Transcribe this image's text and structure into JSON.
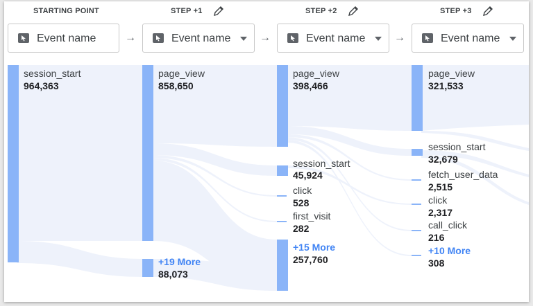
{
  "steps": [
    {
      "heading": "STARTING POINT",
      "selector": "Event name",
      "has_dropdown": false,
      "editable": false
    },
    {
      "heading": "STEP +1",
      "selector": "Event name",
      "has_dropdown": true,
      "editable": true
    },
    {
      "heading": "STEP +2",
      "selector": "Event name",
      "has_dropdown": true,
      "editable": true
    },
    {
      "heading": "STEP +3",
      "selector": "Event name",
      "has_dropdown": true,
      "editable": true
    }
  ],
  "arrow_glyph": "→",
  "nodes": {
    "c0": [
      {
        "label": "session_start",
        "value": "964,363"
      }
    ],
    "c1": [
      {
        "label": "page_view",
        "value": "858,650"
      },
      {
        "label": "+19 More",
        "value": "88,073",
        "more": true
      }
    ],
    "c2": [
      {
        "label": "page_view",
        "value": "398,466"
      },
      {
        "label": "session_start",
        "value": "45,924"
      },
      {
        "label": "click",
        "value": "528"
      },
      {
        "label": "first_visit",
        "value": "282"
      },
      {
        "label": "+15 More",
        "value": "257,760",
        "more": true
      }
    ],
    "c3": [
      {
        "label": "page_view",
        "value": "321,533"
      },
      {
        "label": "session_start",
        "value": "32,679"
      },
      {
        "label": "fetch_user_data",
        "value": "2,515"
      },
      {
        "label": "click",
        "value": "2,317"
      },
      {
        "label": "call_click",
        "value": "216"
      },
      {
        "label": "+10 More",
        "value": "308",
        "more": true
      }
    ]
  },
  "colors": {
    "node": "#8ab4f8",
    "flow": "#eef2fb",
    "more_link": "#4285f4"
  }
}
